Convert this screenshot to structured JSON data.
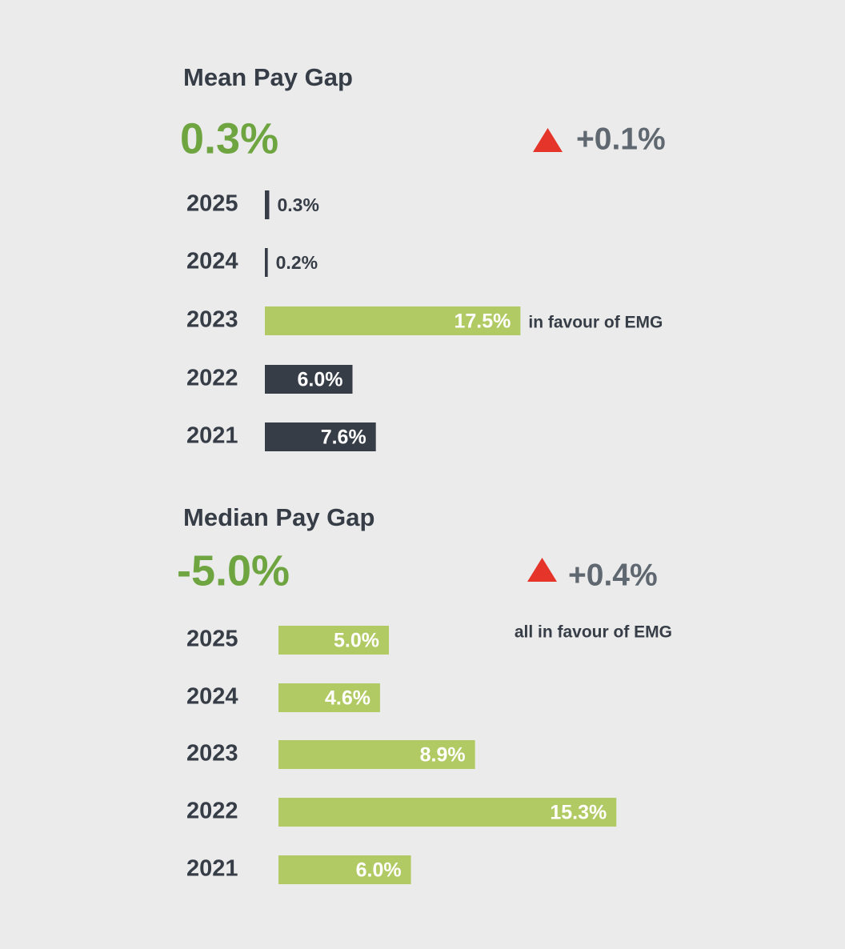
{
  "chart_data": [
    {
      "type": "bar",
      "orientation": "horizontal",
      "title": "Mean Pay Gap",
      "headline": "0.3%",
      "change": "+0.1%",
      "categories": [
        "2025",
        "2024",
        "2023",
        "2022",
        "2021"
      ],
      "values": [
        0.3,
        0.2,
        17.5,
        6.0,
        7.6
      ],
      "value_labels": [
        "0.3%",
        "0.2%",
        "17.5%",
        "6.0%",
        "7.6%"
      ],
      "colors": [
        "#363d46",
        "#363d46",
        "#b2ca64",
        "#363d46",
        "#363d46"
      ],
      "annotation": "in favour of EMG"
    },
    {
      "type": "bar",
      "orientation": "horizontal",
      "title": "Median Pay Gap",
      "headline": "-5.0%",
      "change": "+0.4%",
      "categories": [
        "2025",
        "2024",
        "2023",
        "2022",
        "2021"
      ],
      "values": [
        5.0,
        4.6,
        8.9,
        15.3,
        6.0
      ],
      "value_labels": [
        "5.0%",
        "4.6%",
        "8.9%",
        "15.3%",
        "6.0%"
      ],
      "colors": [
        "#b2ca64",
        "#b2ca64",
        "#b2ca64",
        "#b2ca64",
        "#b2ca64"
      ],
      "annotation": "all in favour of EMG"
    }
  ]
}
